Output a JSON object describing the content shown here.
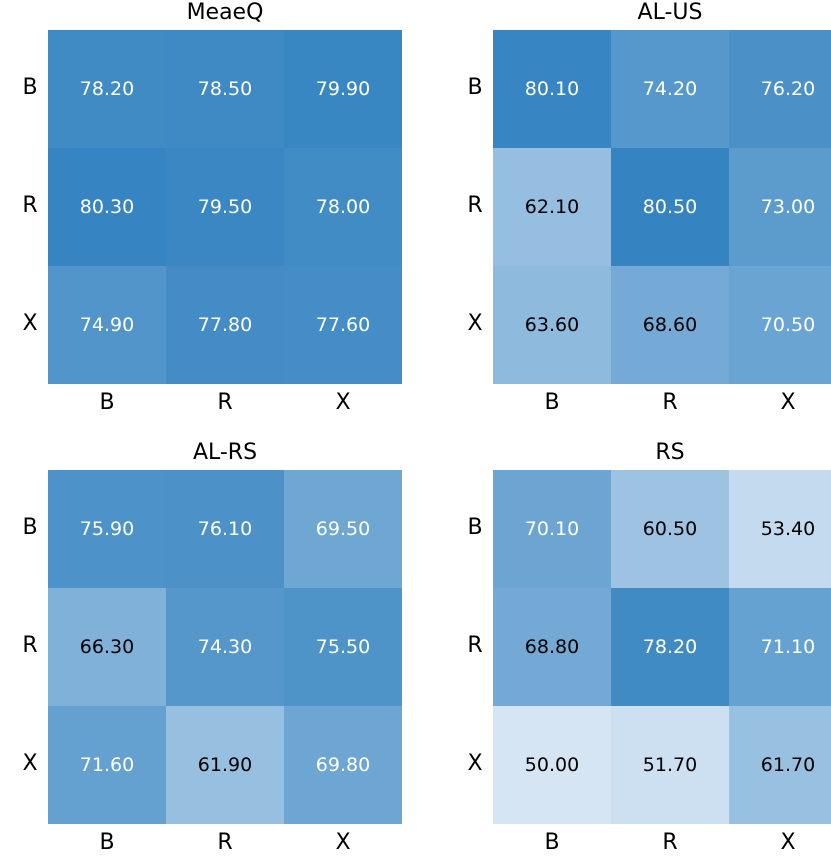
{
  "chart_data": [
    {
      "type": "heatmap",
      "title": "MeaeQ",
      "rows": [
        "B",
        "R",
        "X"
      ],
      "cols": [
        "B",
        "R",
        "X"
      ],
      "values": [
        [
          78.2,
          78.5,
          79.9
        ],
        [
          80.3,
          79.5,
          78.0
        ],
        [
          74.9,
          77.8,
          77.6
        ]
      ],
      "labels": [
        [
          "78.20",
          "78.50",
          "79.90"
        ],
        [
          "80.30",
          "79.50",
          "78.00"
        ],
        [
          "74.90",
          "77.80",
          "77.60"
        ]
      ]
    },
    {
      "type": "heatmap",
      "title": "AL-US",
      "rows": [
        "B",
        "R",
        "X"
      ],
      "cols": [
        "B",
        "R",
        "X"
      ],
      "values": [
        [
          80.1,
          74.2,
          76.2
        ],
        [
          62.1,
          80.5,
          73.0
        ],
        [
          63.6,
          68.6,
          70.5
        ]
      ],
      "labels": [
        [
          "80.10",
          "74.20",
          "76.20"
        ],
        [
          "62.10",
          "80.50",
          "73.00"
        ],
        [
          "63.60",
          "68.60",
          "70.50"
        ]
      ]
    },
    {
      "type": "heatmap",
      "title": "AL-RS",
      "rows": [
        "B",
        "R",
        "X"
      ],
      "cols": [
        "B",
        "R",
        "X"
      ],
      "values": [
        [
          75.9,
          76.1,
          69.5
        ],
        [
          66.3,
          74.3,
          75.5
        ],
        [
          71.6,
          61.9,
          69.8
        ]
      ],
      "labels": [
        [
          "75.90",
          "76.10",
          "69.50"
        ],
        [
          "66.30",
          "74.30",
          "75.50"
        ],
        [
          "71.60",
          "61.90",
          "69.80"
        ]
      ]
    },
    {
      "type": "heatmap",
      "title": "RS",
      "rows": [
        "B",
        "R",
        "X"
      ],
      "cols": [
        "B",
        "R",
        "X"
      ],
      "values": [
        [
          70.1,
          60.5,
          53.4
        ],
        [
          68.8,
          78.2,
          71.1
        ],
        [
          50.0,
          51.7,
          61.7
        ]
      ],
      "labels": [
        [
          "70.10",
          "60.50",
          "53.40"
        ],
        [
          "68.80",
          "78.20",
          "71.10"
        ],
        [
          "50.00",
          "51.70",
          "61.70"
        ]
      ]
    }
  ],
  "colorscale": {
    "min_value": 50,
    "max_value": 81,
    "min_color": "#d6e5f4",
    "max_color": "#3282c0"
  }
}
